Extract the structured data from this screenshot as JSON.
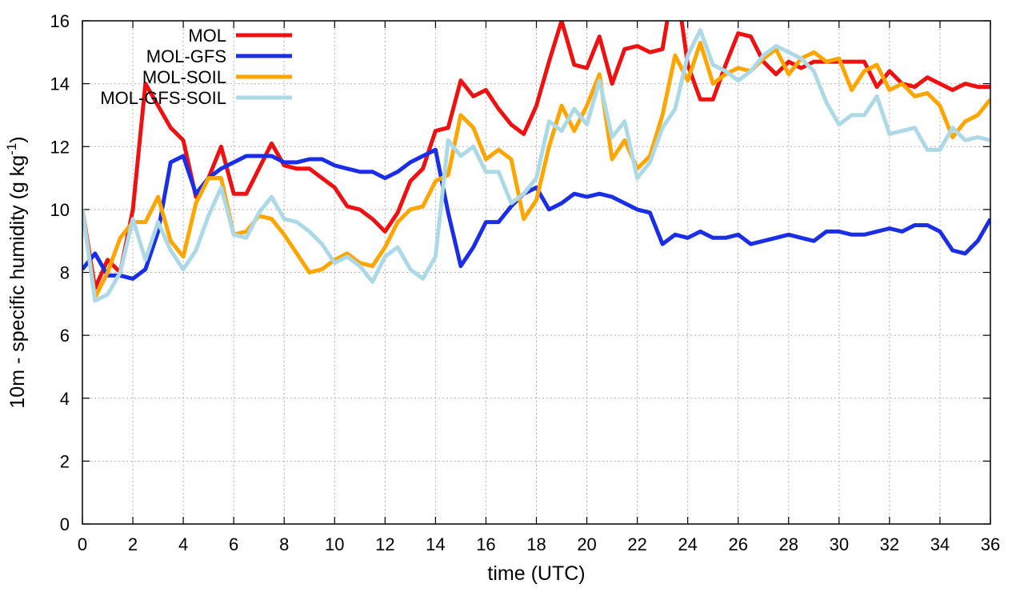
{
  "chart_data": {
    "type": "line",
    "title": "",
    "xlabel": "time (UTC)",
    "ylabel_main": "10m - specific humidity (g kg",
    "ylabel_sup": "-1",
    "ylabel_close": ")",
    "xlim": [
      0,
      36
    ],
    "ylim": [
      0,
      16
    ],
    "xticks": [
      0,
      2,
      4,
      6,
      8,
      10,
      12,
      14,
      16,
      18,
      20,
      22,
      24,
      26,
      28,
      30,
      32,
      34,
      36
    ],
    "yticks": [
      0,
      2,
      4,
      6,
      8,
      10,
      12,
      14,
      16
    ],
    "grid": true,
    "legend_position": "top-left",
    "x": [
      0,
      0.5,
      1,
      1.5,
      2,
      2.5,
      3,
      3.5,
      4,
      4.5,
      5,
      5.5,
      6,
      6.5,
      7,
      7.5,
      8,
      8.5,
      9,
      9.5,
      10,
      10.5,
      11,
      11.5,
      12,
      12.5,
      13,
      13.5,
      14,
      14.5,
      15,
      15.5,
      16,
      16.5,
      17,
      17.5,
      18,
      18.5,
      19,
      19.5,
      20,
      20.5,
      21,
      21.5,
      22,
      22.5,
      23,
      23.5,
      24,
      24.5,
      25,
      25.5,
      26,
      26.5,
      27,
      27.5,
      28,
      28.5,
      29,
      29.5,
      30,
      30.5,
      31,
      31.5,
      32,
      32.5,
      33,
      33.5,
      34,
      34.5,
      35,
      35.5,
      36
    ],
    "series": [
      {
        "name": "MOL",
        "color": "#ee1111",
        "values": [
          10.0,
          7.5,
          8.4,
          8.0,
          10.0,
          14.0,
          13.3,
          12.6,
          12.2,
          10.4,
          11.0,
          12.0,
          10.5,
          10.5,
          11.3,
          12.1,
          11.4,
          11.3,
          11.3,
          11.0,
          10.7,
          10.1,
          10.0,
          9.7,
          9.3,
          9.9,
          10.9,
          11.3,
          12.5,
          12.6,
          14.1,
          13.6,
          13.8,
          13.2,
          12.7,
          12.4,
          13.3,
          14.7,
          16.0,
          14.6,
          14.5,
          15.5,
          14.0,
          15.1,
          15.2,
          15.0,
          15.1,
          17.5,
          14.6,
          13.5,
          13.5,
          14.6,
          15.6,
          15.5,
          14.7,
          14.3,
          14.7,
          14.5,
          14.7,
          14.7,
          14.7,
          14.7,
          14.7,
          13.9,
          14.4,
          14.0,
          13.9,
          14.2,
          14.0,
          13.8,
          14.0,
          13.9,
          13.9
        ]
      },
      {
        "name": "MOL-GFS",
        "color": "#1a2ee6",
        "values": [
          8.1,
          8.6,
          7.9,
          7.9,
          7.8,
          8.1,
          9.3,
          11.5,
          11.7,
          10.5,
          11.0,
          11.3,
          11.5,
          11.7,
          11.7,
          11.7,
          11.5,
          11.5,
          11.6,
          11.6,
          11.4,
          11.3,
          11.2,
          11.2,
          11.0,
          11.2,
          11.5,
          11.7,
          11.9,
          9.9,
          8.2,
          8.8,
          9.6,
          9.6,
          10.1,
          10.5,
          10.7,
          10.0,
          10.2,
          10.5,
          10.4,
          10.5,
          10.4,
          10.2,
          10.0,
          9.9,
          8.9,
          9.2,
          9.1,
          9.3,
          9.1,
          9.1,
          9.2,
          8.9,
          9.0,
          9.1,
          9.2,
          9.1,
          9.0,
          9.3,
          9.3,
          9.2,
          9.2,
          9.3,
          9.4,
          9.3,
          9.5,
          9.5,
          9.3,
          8.7,
          8.6,
          9.0,
          9.7
        ]
      },
      {
        "name": "MOL-SOIL",
        "color": "#ffa500",
        "values": [
          10.0,
          7.2,
          8.0,
          9.1,
          9.6,
          9.6,
          10.4,
          9.0,
          8.5,
          10.2,
          11.0,
          11.0,
          9.2,
          9.3,
          9.8,
          9.7,
          9.2,
          8.6,
          8.0,
          8.1,
          8.4,
          8.6,
          8.3,
          8.2,
          8.8,
          9.6,
          10.0,
          10.1,
          10.9,
          11.1,
          13.0,
          12.6,
          11.6,
          11.9,
          11.6,
          9.7,
          10.3,
          12.0,
          13.3,
          12.5,
          13.3,
          14.3,
          11.6,
          12.2,
          11.3,
          11.7,
          13.0,
          14.9,
          14.1,
          15.3,
          14.0,
          14.3,
          14.5,
          14.4,
          14.8,
          15.1,
          14.3,
          14.8,
          15.0,
          14.7,
          14.8,
          13.8,
          14.4,
          14.6,
          13.8,
          14.0,
          13.6,
          13.7,
          13.3,
          12.3,
          12.8,
          13.0,
          13.5
        ]
      },
      {
        "name": "MOL-GFS-SOIL",
        "color": "#add8e6",
        "values": [
          10.0,
          7.1,
          7.3,
          8.0,
          9.7,
          8.4,
          9.6,
          8.7,
          8.1,
          8.7,
          9.8,
          10.7,
          9.2,
          9.1,
          9.9,
          10.4,
          9.7,
          9.6,
          9.3,
          8.9,
          8.3,
          8.5,
          8.2,
          7.7,
          8.5,
          8.8,
          8.1,
          7.8,
          8.5,
          12.2,
          11.7,
          12.0,
          11.2,
          11.2,
          10.2,
          10.5,
          11.0,
          12.8,
          12.5,
          13.2,
          12.7,
          14.1,
          12.3,
          12.8,
          11.0,
          11.5,
          12.6,
          13.2,
          14.9,
          15.7,
          14.6,
          14.4,
          14.1,
          14.4,
          14.9,
          15.2,
          15.0,
          14.8,
          14.4,
          13.4,
          12.7,
          13.0,
          13.0,
          13.6,
          12.4,
          12.5,
          12.6,
          11.9,
          11.9,
          12.6,
          12.2,
          12.3,
          12.2
        ]
      }
    ]
  }
}
